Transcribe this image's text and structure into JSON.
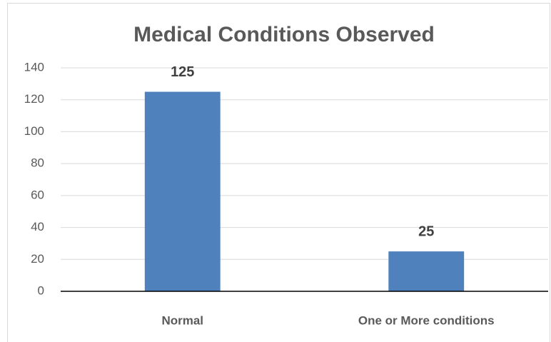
{
  "chart_data": {
    "type": "bar",
    "title": "Medical Conditions Observed",
    "categories": [
      "Normal",
      "One or More conditions"
    ],
    "values": [
      125,
      25
    ],
    "color": "#4f81bd",
    "ylim": [
      0,
      140
    ],
    "yticks": [
      0,
      20,
      40,
      60,
      80,
      100,
      120,
      140
    ],
    "grid": true
  }
}
